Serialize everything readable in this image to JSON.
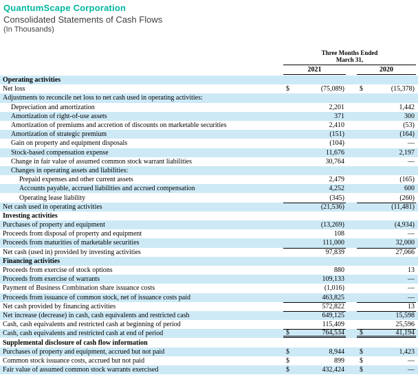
{
  "header": {
    "company": "QuantumScape Corporation",
    "title": "Consolidated Statements of Cash Flows",
    "note": "(In Thousands)"
  },
  "colors": {
    "brand_teal": "#00b79e",
    "row_shade_blue": "#cde9f6",
    "subtitle_gray": "#3f3f3f",
    "table_text": "#000000"
  },
  "table": {
    "period_header_line1": "Three Months Ended",
    "period_header_line2": "March 31,",
    "years": [
      "2021",
      "2020"
    ],
    "rows": [
      {
        "label": "Operating activities",
        "ind": 0,
        "bold": true,
        "shade": true,
        "dollar": false,
        "v2021": "",
        "v2020": "",
        "rule_top": false,
        "double_bottom": false
      },
      {
        "label": "Net loss",
        "ind": 0,
        "bold": false,
        "shade": false,
        "dollar": true,
        "v2021": "(75,089)",
        "v2020": "(15,378)",
        "rule_top": false,
        "double_bottom": false
      },
      {
        "label": "Adjustments to reconcile net loss to net cash used in operating activities:",
        "ind": 0,
        "bold": false,
        "shade": true,
        "dollar": false,
        "v2021": "",
        "v2020": "",
        "rule_top": false,
        "double_bottom": false
      },
      {
        "label": "Depreciation and amortization",
        "ind": 1,
        "bold": false,
        "shade": false,
        "dollar": false,
        "v2021": "2,201",
        "v2020": "1,442",
        "rule_top": false,
        "double_bottom": false
      },
      {
        "label": "Amortization of right-of-use assets",
        "ind": 1,
        "bold": false,
        "shade": true,
        "dollar": false,
        "v2021": "371",
        "v2020": "300",
        "rule_top": false,
        "double_bottom": false
      },
      {
        "label": "Amortization of premiums and accretion of discounts on marketable securities",
        "ind": 1,
        "bold": false,
        "shade": false,
        "dollar": false,
        "v2021": "2,410",
        "v2020": "(53)",
        "rule_top": false,
        "double_bottom": false
      },
      {
        "label": "Amortization of strategic premium",
        "ind": 1,
        "bold": false,
        "shade": true,
        "dollar": false,
        "v2021": "(151)",
        "v2020": "(164)",
        "rule_top": false,
        "double_bottom": false
      },
      {
        "label": "Gain on property and equipment disposals",
        "ind": 1,
        "bold": false,
        "shade": false,
        "dollar": false,
        "v2021": "(104)",
        "v2020": "—",
        "rule_top": false,
        "double_bottom": false
      },
      {
        "label": "Stock-based compensation expense",
        "ind": 1,
        "bold": false,
        "shade": true,
        "dollar": false,
        "v2021": "11,676",
        "v2020": "2,197",
        "rule_top": false,
        "double_bottom": false
      },
      {
        "label": "Change in fair value of assumed common stock warrant liabilities",
        "ind": 1,
        "bold": false,
        "shade": false,
        "dollar": false,
        "v2021": "30,764",
        "v2020": "—",
        "rule_top": false,
        "double_bottom": false
      },
      {
        "label": "Changes in operating assets and liabilities:",
        "ind": 1,
        "bold": false,
        "shade": true,
        "dollar": false,
        "v2021": "",
        "v2020": "",
        "rule_top": false,
        "double_bottom": false
      },
      {
        "label": "Prepaid expenses and other current assets",
        "ind": 2,
        "bold": false,
        "shade": false,
        "dollar": false,
        "v2021": "2,479",
        "v2020": "(165)",
        "rule_top": false,
        "double_bottom": false
      },
      {
        "label": "Accounts payable, accrued liabilities and accrued compensation",
        "ind": 2,
        "bold": false,
        "shade": true,
        "dollar": false,
        "v2021": "4,252",
        "v2020": "600",
        "rule_top": false,
        "double_bottom": false
      },
      {
        "label": "Operating lease liability",
        "ind": 2,
        "bold": false,
        "shade": false,
        "dollar": false,
        "v2021": "(345)",
        "v2020": "(260)",
        "rule_top": false,
        "double_bottom": false
      },
      {
        "label": "Net cash used in operating activities",
        "ind": 0,
        "bold": false,
        "shade": true,
        "dollar": false,
        "v2021": "(21,536)",
        "v2020": "(11,481)",
        "rule_top": true,
        "double_bottom": false
      },
      {
        "label": "Investing activities",
        "ind": 0,
        "bold": true,
        "shade": false,
        "dollar": false,
        "v2021": "",
        "v2020": "",
        "rule_top": false,
        "double_bottom": false
      },
      {
        "label": "Purchases of property and equipment",
        "ind": 0,
        "bold": false,
        "shade": true,
        "dollar": false,
        "v2021": "(13,269)",
        "v2020": "(4,934)",
        "rule_top": false,
        "double_bottom": false
      },
      {
        "label": "Proceeds from disposal of property and equipment",
        "ind": 0,
        "bold": false,
        "shade": false,
        "dollar": false,
        "v2021": "108",
        "v2020": "—",
        "rule_top": false,
        "double_bottom": false
      },
      {
        "label": "Proceeds from maturities of marketable securities",
        "ind": 0,
        "bold": false,
        "shade": true,
        "dollar": false,
        "v2021": "111,000",
        "v2020": "32,000",
        "rule_top": false,
        "double_bottom": false
      },
      {
        "label": "Net cash (used in) provided by investing activities",
        "ind": 0,
        "bold": false,
        "shade": false,
        "dollar": false,
        "v2021": "97,839",
        "v2020": "27,066",
        "rule_top": true,
        "double_bottom": false
      },
      {
        "label": "Financing activities",
        "ind": 0,
        "bold": true,
        "shade": true,
        "dollar": false,
        "v2021": "",
        "v2020": "",
        "rule_top": false,
        "double_bottom": false
      },
      {
        "label": "Proceeds from exercise of stock options",
        "ind": 0,
        "bold": false,
        "shade": false,
        "dollar": false,
        "v2021": "880",
        "v2020": "13",
        "rule_top": false,
        "double_bottom": false
      },
      {
        "label": "Proceeds from exercise of warrants",
        "ind": 0,
        "bold": false,
        "shade": true,
        "dollar": false,
        "v2021": "109,133",
        "v2020": "—",
        "rule_top": false,
        "double_bottom": false
      },
      {
        "label": "Payment of Business Combination share issuance costs",
        "ind": 0,
        "bold": false,
        "shade": false,
        "dollar": false,
        "v2021": "(1,016)",
        "v2020": "—",
        "rule_top": false,
        "double_bottom": false
      },
      {
        "label": "Proceeds from issuance of common stock, net of issuance costs paid",
        "ind": 0,
        "bold": false,
        "shade": true,
        "dollar": false,
        "v2021": "463,825",
        "v2020": "—",
        "rule_top": false,
        "double_bottom": false
      },
      {
        "label": "Net cash provided by financing activities",
        "ind": 0,
        "bold": false,
        "shade": false,
        "dollar": false,
        "v2021": "572,822",
        "v2020": "13",
        "rule_top": true,
        "double_bottom": false
      },
      {
        "label": "Net increase (decrease) in cash, cash equivalents and restricted cash",
        "ind": 0,
        "bold": false,
        "shade": true,
        "dollar": false,
        "v2021": "649,125",
        "v2020": "15,598",
        "rule_top": true,
        "double_bottom": false
      },
      {
        "label": "Cash, cash equivalents and restricted cash at beginning of period",
        "ind": 0,
        "bold": false,
        "shade": false,
        "dollar": false,
        "v2021": "115,409",
        "v2020": "25,596",
        "rule_top": false,
        "double_bottom": false
      },
      {
        "label": "Cash, cash equivalents and restricted cash at end of period",
        "ind": 0,
        "bold": false,
        "shade": true,
        "dollar": true,
        "v2021": "764,534",
        "v2020": "41,194",
        "rule_top": true,
        "double_bottom": true
      },
      {
        "label": "Supplemental disclosure of cash flow information",
        "ind": 0,
        "bold": true,
        "shade": false,
        "dollar": false,
        "v2021": "",
        "v2020": "",
        "rule_top": false,
        "double_bottom": false
      },
      {
        "label": "Purchases of property and equipment, accrued but not paid",
        "ind": 0,
        "bold": false,
        "shade": true,
        "dollar": true,
        "v2021": "8,944",
        "v2020": "1,423",
        "rule_top": false,
        "double_bottom": false
      },
      {
        "label": "Common stock issuance costs, accrued but not paid",
        "ind": 0,
        "bold": false,
        "shade": false,
        "dollar": true,
        "v2021": "899",
        "v2020": "—",
        "rule_top": false,
        "double_bottom": false
      },
      {
        "label": "Fair value of assumed common stock warrants exercised",
        "ind": 0,
        "bold": false,
        "shade": true,
        "dollar": true,
        "v2021": "432,424",
        "v2020": "—",
        "rule_top": false,
        "double_bottom": false
      }
    ]
  }
}
